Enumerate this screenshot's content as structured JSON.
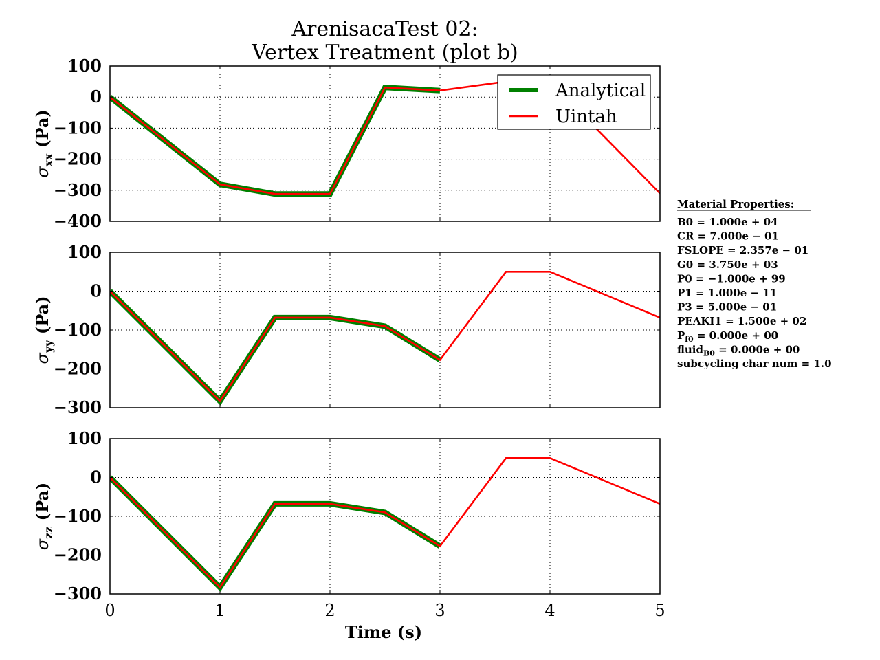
{
  "figure": {
    "title_line1": "ArenisacaTest 02:",
    "title_line2": "Vertex Treatment (plot b)",
    "xlabel": "Time (s)",
    "colors": {
      "analytical": "#008000",
      "uintah": "#ff0000",
      "grid": "#000000"
    }
  },
  "material_properties": {
    "heading": "Material Properties:",
    "items": [
      "B0 = 1.000e + 04",
      "CR = 7.000e − 01",
      "FSLOPE = 2.357e − 01",
      "G0 = 3.750e + 03",
      "P0 = −1.000e + 99",
      "P1 = 1.000e − 11",
      "P3 = 5.000e − 01",
      "PEAKI1 = 1.500e + 02",
      "P_f0 = 0.000e + 00",
      "fluid_B0 = 0.000e + 00",
      "subcycling char num = 1.0"
    ]
  },
  "chart_data": [
    {
      "type": "line",
      "ylabel_sym": "σ",
      "ylabel_sub": "xx",
      "ylabel_unit": " (Pa)",
      "xlim": [
        0,
        5
      ],
      "ylim": [
        -400,
        100
      ],
      "yticks": [
        100,
        0,
        -100,
        -200,
        -300,
        -400
      ],
      "xticks": [
        0,
        1,
        2,
        3,
        4,
        5
      ],
      "show_xtick_labels": false,
      "legend": {
        "position": "top-right",
        "entries": [
          "Analytical",
          "Uintah"
        ]
      },
      "series": [
        {
          "name": "Analytical",
          "x": [
            0,
            1,
            1.5,
            2,
            2.5,
            3
          ],
          "y": [
            0,
            -281,
            -312,
            -312,
            31,
            21
          ]
        },
        {
          "name": "Uintah",
          "x": [
            0,
            1,
            1.5,
            2,
            2.5,
            3,
            3.6,
            4,
            5
          ],
          "y": [
            0,
            -281,
            -312,
            -312,
            31,
            21,
            50,
            50,
            -310
          ]
        }
      ]
    },
    {
      "type": "line",
      "ylabel_sym": "σ",
      "ylabel_sub": "yy",
      "ylabel_unit": " (Pa)",
      "xlim": [
        0,
        5
      ],
      "ylim": [
        -300,
        100
      ],
      "yticks": [
        100,
        0,
        -100,
        -200,
        -300
      ],
      "xticks": [
        0,
        1,
        2,
        3,
        4,
        5
      ],
      "show_xtick_labels": false,
      "series": [
        {
          "name": "Analytical",
          "x": [
            0,
            1,
            1.5,
            2,
            2.5,
            3
          ],
          "y": [
            0,
            -283,
            -68,
            -68,
            -90,
            -177
          ]
        },
        {
          "name": "Uintah",
          "x": [
            0,
            1,
            1.5,
            2,
            2.5,
            3,
            3.6,
            4,
            5
          ],
          "y": [
            0,
            -283,
            -68,
            -68,
            -90,
            -177,
            50,
            50,
            -68
          ]
        }
      ]
    },
    {
      "type": "line",
      "ylabel_sym": "σ",
      "ylabel_sub": "zz",
      "ylabel_unit": " (Pa)",
      "xlim": [
        0,
        5
      ],
      "ylim": [
        -300,
        100
      ],
      "yticks": [
        100,
        0,
        -100,
        -200,
        -300
      ],
      "xticks": [
        0,
        1,
        2,
        3,
        4,
        5
      ],
      "show_xtick_labels": true,
      "series": [
        {
          "name": "Analytical",
          "x": [
            0,
            1,
            1.5,
            2,
            2.5,
            3
          ],
          "y": [
            0,
            -283,
            -68,
            -68,
            -90,
            -177
          ]
        },
        {
          "name": "Uintah",
          "x": [
            0,
            1,
            1.5,
            2,
            2.5,
            3,
            3.6,
            4,
            5
          ],
          "y": [
            0,
            -283,
            -68,
            -68,
            -90,
            -177,
            50,
            50,
            -68
          ]
        }
      ]
    }
  ]
}
